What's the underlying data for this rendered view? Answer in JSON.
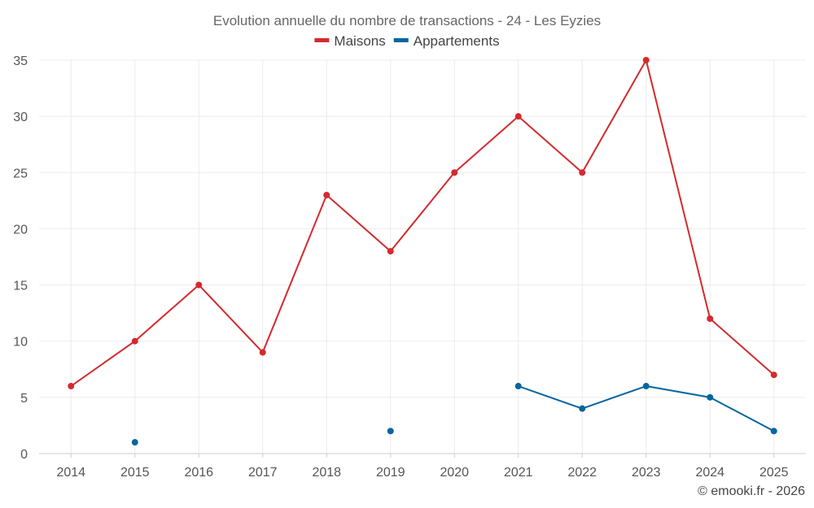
{
  "chart_data": {
    "type": "line",
    "title": "Evolution annuelle du nombre de transactions - 24 - Les Eyzies",
    "categories": [
      "2014",
      "2015",
      "2016",
      "2017",
      "2018",
      "2019",
      "2020",
      "2021",
      "2022",
      "2023",
      "2024",
      "2025"
    ],
    "series": [
      {
        "name": "Maisons",
        "color": "#d42a2e",
        "values": [
          6,
          10,
          15,
          9,
          23,
          18,
          25,
          30,
          25,
          35,
          12,
          7
        ]
      },
      {
        "name": "Appartements",
        "color": "#04659f",
        "values": [
          null,
          1,
          null,
          null,
          null,
          2,
          null,
          6,
          4,
          6,
          5,
          2
        ]
      }
    ],
    "ylim": [
      0,
      35
    ],
    "yticks": [
      0,
      5,
      10,
      15,
      20,
      25,
      30,
      35
    ],
    "xlabel": "",
    "ylabel": "",
    "legend_position": "top-center",
    "grid": true
  },
  "credit": "© emooki.fr - 2026"
}
